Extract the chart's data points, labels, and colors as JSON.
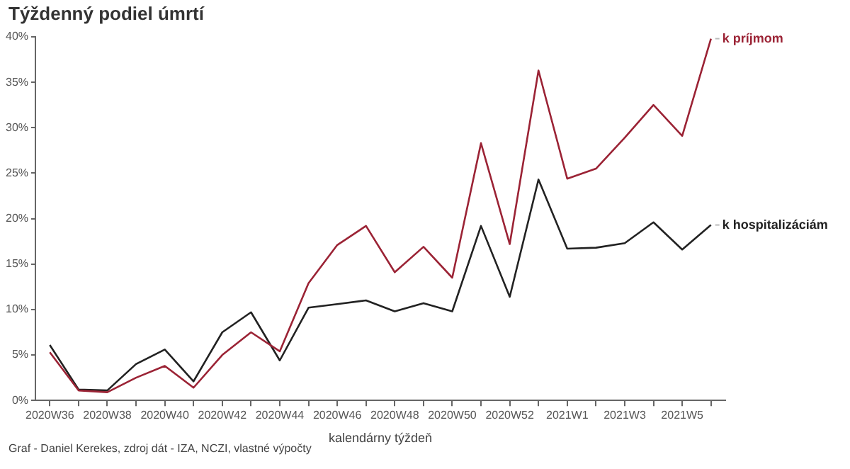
{
  "chart_data": {
    "type": "line",
    "title": "Týždenný podiel úmrtí",
    "xlabel": "kalendárny týždeň",
    "categories": [
      "2020W36",
      null,
      "2020W38",
      null,
      "2020W40",
      null,
      "2020W42",
      null,
      "2020W44",
      null,
      "2020W46",
      null,
      "2020W48",
      null,
      "2020W50",
      null,
      "2020W52",
      null,
      "2021W1",
      null,
      "2021W3",
      null,
      "2021W5",
      null
    ],
    "series": [
      {
        "name": "k príjmom",
        "color": "#9b2335",
        "values": [
          5.3,
          1.1,
          0.9,
          2.5,
          3.8,
          1.4,
          5.0,
          7.5,
          5.4,
          12.9,
          17.1,
          19.2,
          14.1,
          16.9,
          13.5,
          28.3,
          17.2,
          36.3,
          24.4,
          25.5,
          28.9,
          32.5,
          29.1,
          39.8
        ]
      },
      {
        "name": "k hospitalizáciám",
        "color": "#222222",
        "values": [
          6.1,
          1.2,
          1.1,
          4.0,
          5.6,
          2.1,
          7.5,
          9.7,
          4.4,
          10.2,
          10.6,
          11.0,
          9.8,
          10.7,
          9.8,
          19.2,
          11.4,
          24.3,
          16.7,
          16.8,
          17.3,
          19.6,
          16.6,
          19.3
        ]
      }
    ],
    "ylim": [
      0,
      40
    ],
    "yticks": [
      {
        "value": 0,
        "label": "0%"
      },
      {
        "value": 5,
        "label": "5%"
      },
      {
        "value": 10,
        "label": "10%"
      },
      {
        "value": 15,
        "label": "15%"
      },
      {
        "value": 20,
        "label": "20%"
      },
      {
        "value": 25,
        "label": "25%"
      },
      {
        "value": 30,
        "label": "30%"
      },
      {
        "value": 35,
        "label": "35%"
      },
      {
        "value": 40,
        "label": "40%"
      }
    ],
    "grid": false,
    "legend": false,
    "marker": "none",
    "line_style": "solid",
    "annotations": [
      "Graf - Daniel Kerekes, zdroj dát - IZA, NCZI, vlastné výpočty"
    ]
  }
}
